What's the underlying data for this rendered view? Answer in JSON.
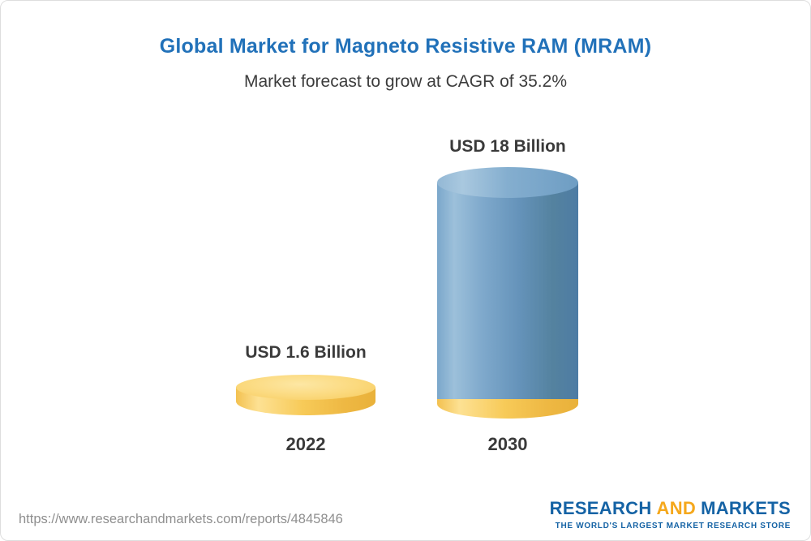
{
  "header": {
    "title": "Global Market for Magneto Resistive RAM (MRAM)",
    "subtitle": "Market forecast to grow at CAGR of 35.2%"
  },
  "chart_data": {
    "type": "bar",
    "variant": "3d-cylinder",
    "title": "Global Market for Magneto Resistive RAM (MRAM)",
    "subtitle": "Market forecast to grow at CAGR of 35.2%",
    "cagr_percent": 35.2,
    "unit": "USD Billion",
    "categories": [
      "2022",
      "2030"
    ],
    "values": [
      1.6,
      18
    ],
    "value_labels": [
      "USD 1.6 Billion",
      "USD 18 Billion"
    ],
    "colors": {
      "bar_2022": "#F8CD5F",
      "bar_2030": "#5E8CB4",
      "accent_title": "#2171B9"
    },
    "legend": "none",
    "grid": false,
    "axes": "none"
  },
  "footer": {
    "url": "https://www.researchandmarkets.com/reports/4845846",
    "logo": {
      "research": "RESEARCH",
      "and": "AND",
      "markets": "MARKETS",
      "tagline": "THE WORLD'S LARGEST MARKET RESEARCH STORE"
    }
  }
}
